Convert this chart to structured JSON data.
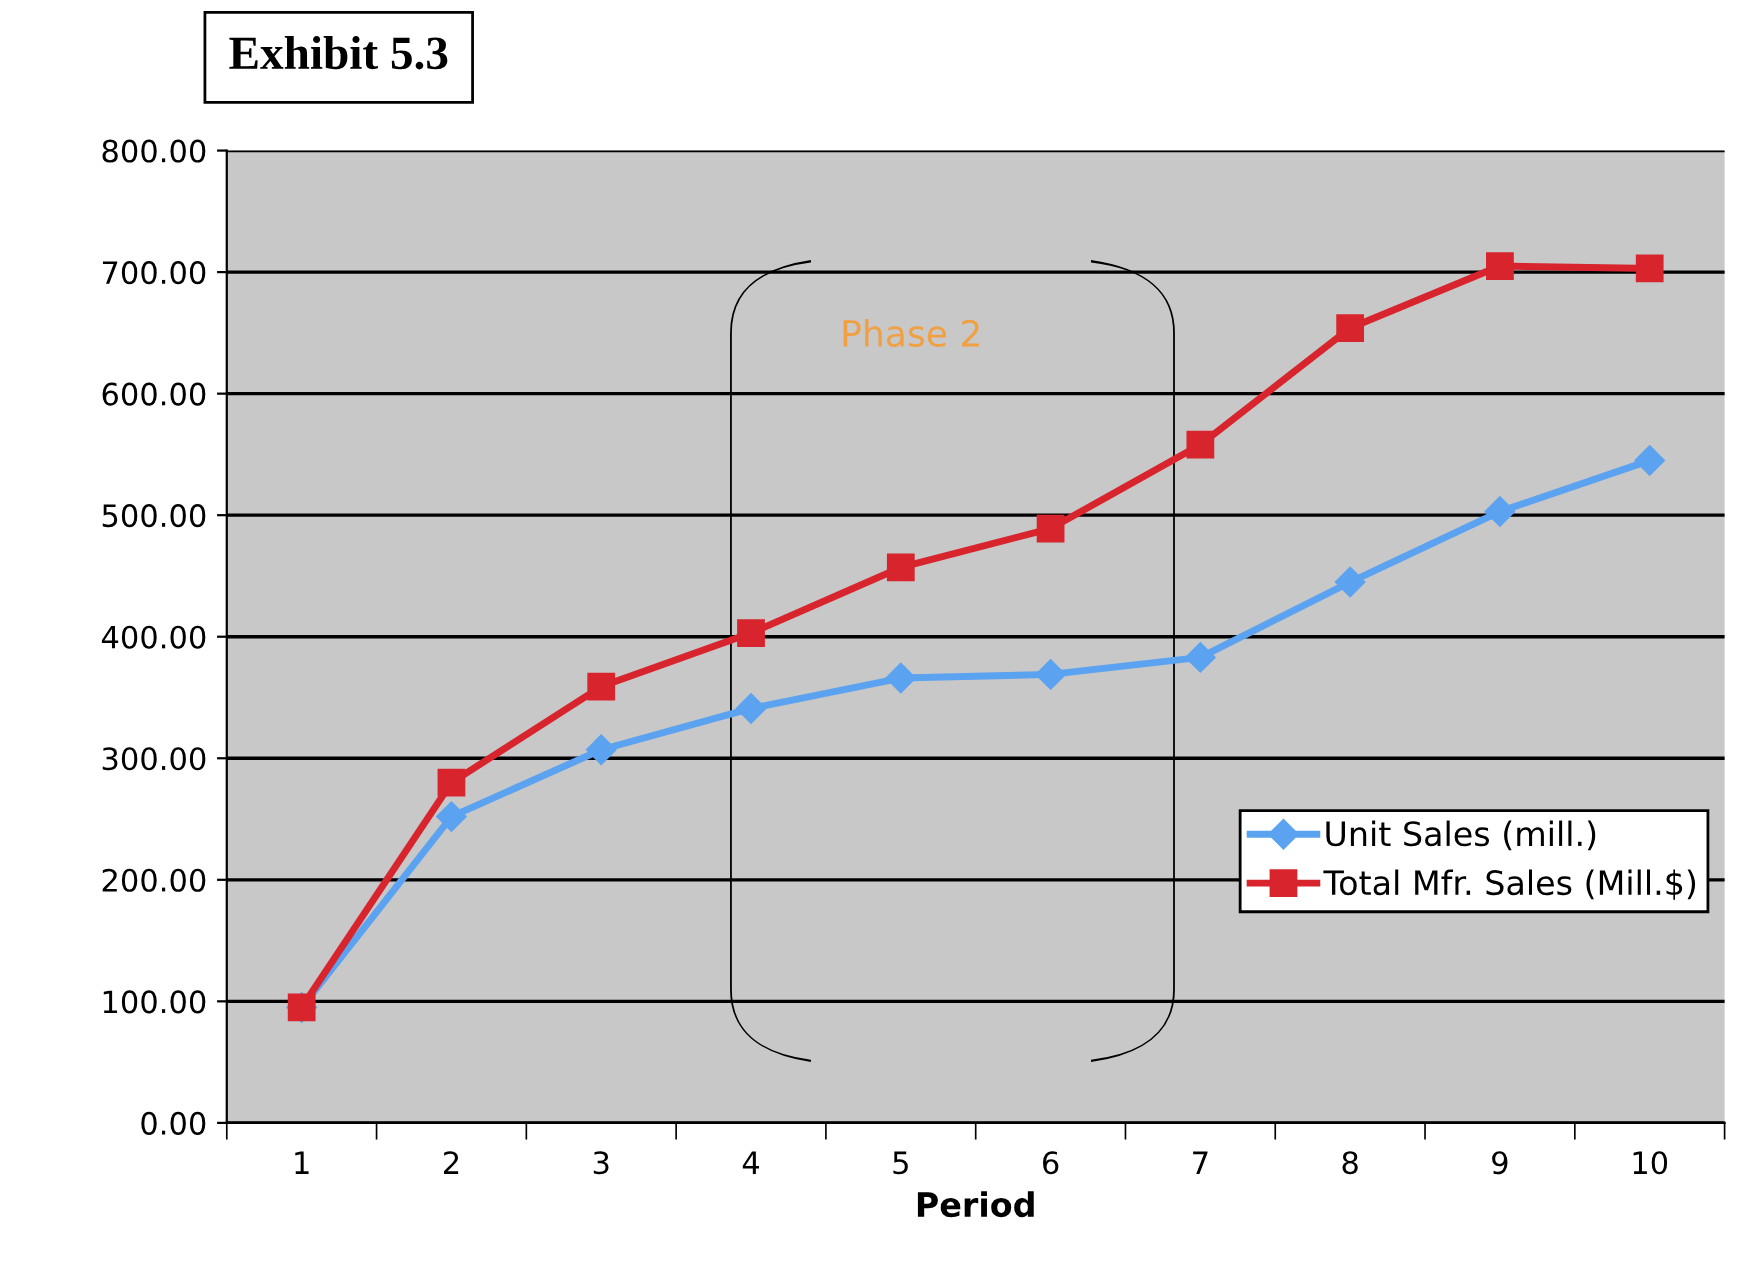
{
  "chart_data": {
    "type": "line",
    "title": "Exhibit 5.3",
    "xlabel": "Period",
    "categories": [
      "1",
      "2",
      "3",
      "4",
      "5",
      "6",
      "7",
      "8",
      "9",
      "10"
    ],
    "series": [
      {
        "name": "Unit Sales (mill.)",
        "color": "#5ba3f0",
        "marker": "diamond",
        "values": [
          95,
          252,
          307,
          341,
          366,
          369,
          383,
          445,
          503,
          545
        ]
      },
      {
        "name": "Total Mfr. Sales (Mill.$)",
        "color": "#d8242c",
        "marker": "square",
        "values": [
          95,
          280,
          359,
          403,
          457,
          489,
          558,
          654,
          705,
          703
        ]
      }
    ],
    "ylim": [
      0,
      800
    ],
    "yticks": [
      {
        "value": 0,
        "label": "0.00"
      },
      {
        "value": 100,
        "label": "100.00"
      },
      {
        "value": 200,
        "label": "200.00"
      },
      {
        "value": 300,
        "label": "300.00"
      },
      {
        "value": 400,
        "label": "400.00"
      },
      {
        "value": 500,
        "label": "500.00"
      },
      {
        "value": 600,
        "label": "600.00"
      },
      {
        "value": 700,
        "label": "700.00"
      },
      {
        "value": 800,
        "label": "800.00"
      }
    ],
    "grid": "y",
    "legend": "right",
    "line_style": "solid",
    "annotations": [
      "Phase 2"
    ]
  }
}
